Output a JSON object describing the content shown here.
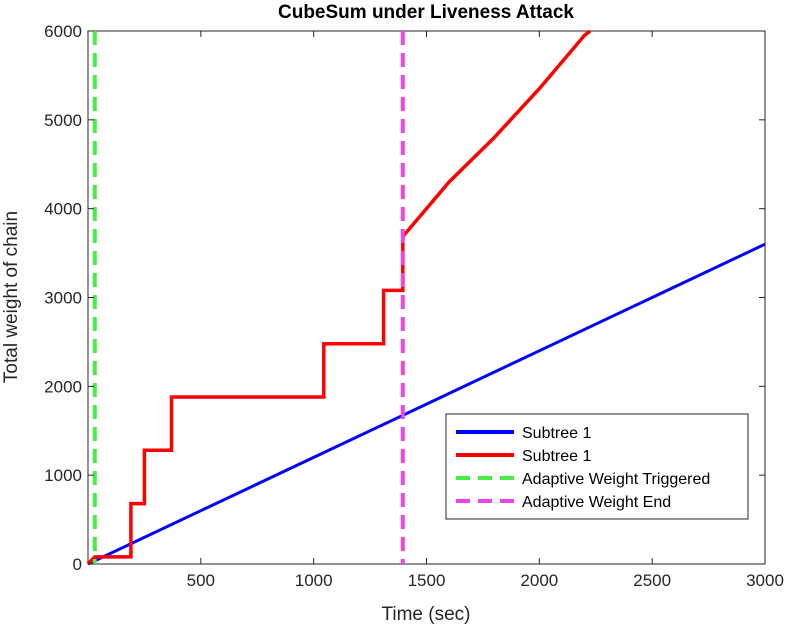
{
  "chart_data": {
    "type": "line",
    "title": "CubeSum under Liveness Attack",
    "xlabel": "Time (sec)",
    "ylabel": "Total weight of chain",
    "xlim": [
      0,
      3000
    ],
    "ylim": [
      0,
      6000
    ],
    "xticks": [
      500,
      1000,
      1500,
      2000,
      2500,
      3000
    ],
    "yticks": [
      0,
      1000,
      2000,
      3000,
      4000,
      5000,
      6000
    ],
    "xtick_labels": [
      "500",
      "1000",
      "1500",
      "2000",
      "2500",
      "3000"
    ],
    "ytick_labels": [
      "0",
      "1000",
      "2000",
      "3000",
      "4000",
      "5000",
      "6000"
    ],
    "grid": false,
    "legend_position": "lower-right",
    "series": [
      {
        "name": "Subtree 1",
        "color": "#0000ff",
        "style": "solid",
        "x": [
          0,
          500,
          1000,
          1500,
          2000,
          2500,
          3000
        ],
        "y": [
          0,
          600,
          1200,
          1800,
          2400,
          3000,
          3600
        ]
      },
      {
        "name": "Subtree 1",
        "color": "#ff0000",
        "style": "solid",
        "x": [
          0,
          30,
          190,
          190,
          250,
          250,
          370,
          370,
          1045,
          1045,
          1310,
          1310,
          1395,
          1395,
          1400,
          1600,
          1800,
          2000,
          2200,
          2225
        ],
        "y": [
          0,
          80,
          80,
          680,
          680,
          1280,
          1280,
          1880,
          1880,
          2480,
          2480,
          3080,
          3080,
          3680,
          3700,
          4300,
          4800,
          5350,
          5950,
          6000
        ]
      },
      {
        "name": "Adaptive Weight Triggered",
        "color": "#44ee44",
        "style": "dashed",
        "vline_x": 30
      },
      {
        "name": "Adaptive Weight End",
        "color": "#ee44ee",
        "style": "dashed",
        "vline_x": 1395
      }
    ]
  }
}
